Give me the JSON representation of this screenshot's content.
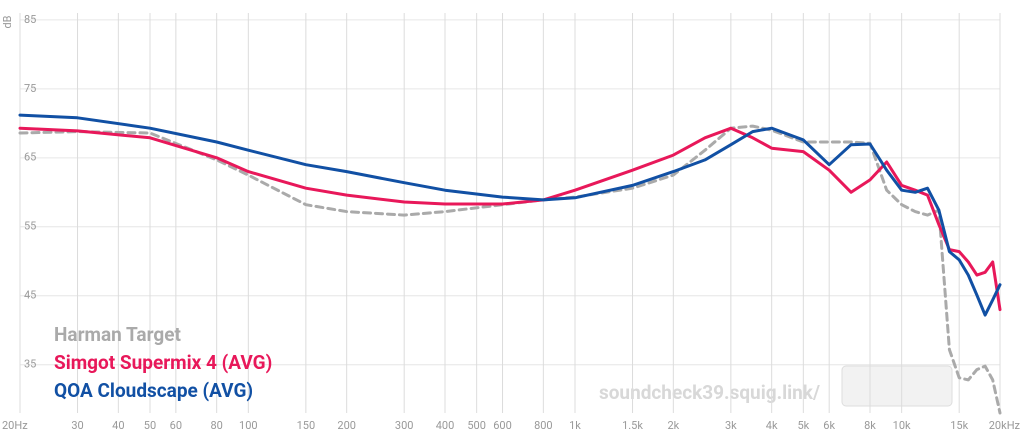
{
  "chart_data": {
    "type": "line",
    "y_label": "dB",
    "watermark": "soundcheck39.squig.link/",
    "log_x": true,
    "grid": true,
    "xlim": [
      20,
      20000
    ],
    "ylim": [
      28,
      86
    ],
    "xticks": [
      {
        "value": 20,
        "label": "20Hz"
      },
      30,
      40,
      50,
      60,
      80,
      100,
      150,
      200,
      300,
      400,
      500,
      600,
      800,
      {
        "value": 1000,
        "label": "1k"
      },
      {
        "value": 1500,
        "label": "1.5k"
      },
      {
        "value": 2000,
        "label": "2k"
      },
      {
        "value": 3000,
        "label": "3k"
      },
      {
        "value": 4000,
        "label": "4k"
      },
      {
        "value": 5000,
        "label": "5k"
      },
      {
        "value": 6000,
        "label": "6k"
      },
      {
        "value": 8000,
        "label": "8k"
      },
      {
        "value": 10000,
        "label": "10k"
      },
      {
        "value": 15000,
        "label": "15k"
      },
      {
        "value": 20000,
        "label": "20kHz"
      }
    ],
    "yticks": [
      85,
      75,
      65,
      55,
      45,
      35
    ],
    "x": [
      20,
      30,
      50,
      80,
      100,
      150,
      200,
      300,
      400,
      600,
      800,
      1000,
      1500,
      2000,
      2500,
      3000,
      3500,
      4000,
      5000,
      6000,
      7000,
      8000,
      9000,
      10000,
      11000,
      12000,
      13000,
      14000,
      15000,
      16000,
      17000,
      18000,
      19000,
      20000
    ],
    "series": [
      {
        "name": "Harman Target",
        "color": "#aaaaaa",
        "dashed": true,
        "values": [
          68.6,
          68.8,
          68.6,
          64.7,
          62.5,
          58.2,
          57.2,
          56.7,
          57.2,
          58.2,
          58.9,
          59.3,
          60.6,
          62.5,
          66.1,
          69.3,
          69.6,
          69.0,
          67.3,
          67.3,
          67.3,
          67.1,
          60.3,
          58.2,
          57.2,
          56.7,
          57.4,
          37.2,
          33.1,
          32.8,
          34.3,
          34.8,
          32.8,
          28.0
        ]
      },
      {
        "name": "Simgot Supermix 4 (AVG)",
        "color": "#e8185a",
        "values": [
          69.3,
          68.9,
          67.9,
          65.0,
          63.0,
          60.6,
          59.6,
          58.6,
          58.3,
          58.3,
          58.9,
          60.3,
          63.2,
          65.4,
          67.9,
          69.3,
          67.9,
          66.4,
          65.9,
          63.2,
          60.0,
          61.8,
          64.4,
          61.0,
          60.3,
          59.6,
          55.3,
          51.7,
          51.4,
          49.9,
          48.0,
          48.4,
          49.9,
          43.0
        ]
      },
      {
        "name": "QOA Cloudscape (AVG)",
        "color": "#1150a4",
        "values": [
          71.2,
          70.8,
          69.3,
          67.3,
          66.1,
          64.0,
          63.0,
          61.4,
          60.3,
          59.3,
          58.9,
          59.2,
          61.0,
          63.0,
          64.7,
          66.9,
          68.8,
          69.3,
          67.6,
          64.0,
          66.9,
          67.0,
          63.2,
          60.3,
          60.0,
          60.6,
          57.4,
          51.4,
          50.2,
          48.0,
          45.1,
          42.2,
          44.4,
          46.6
        ]
      }
    ]
  }
}
